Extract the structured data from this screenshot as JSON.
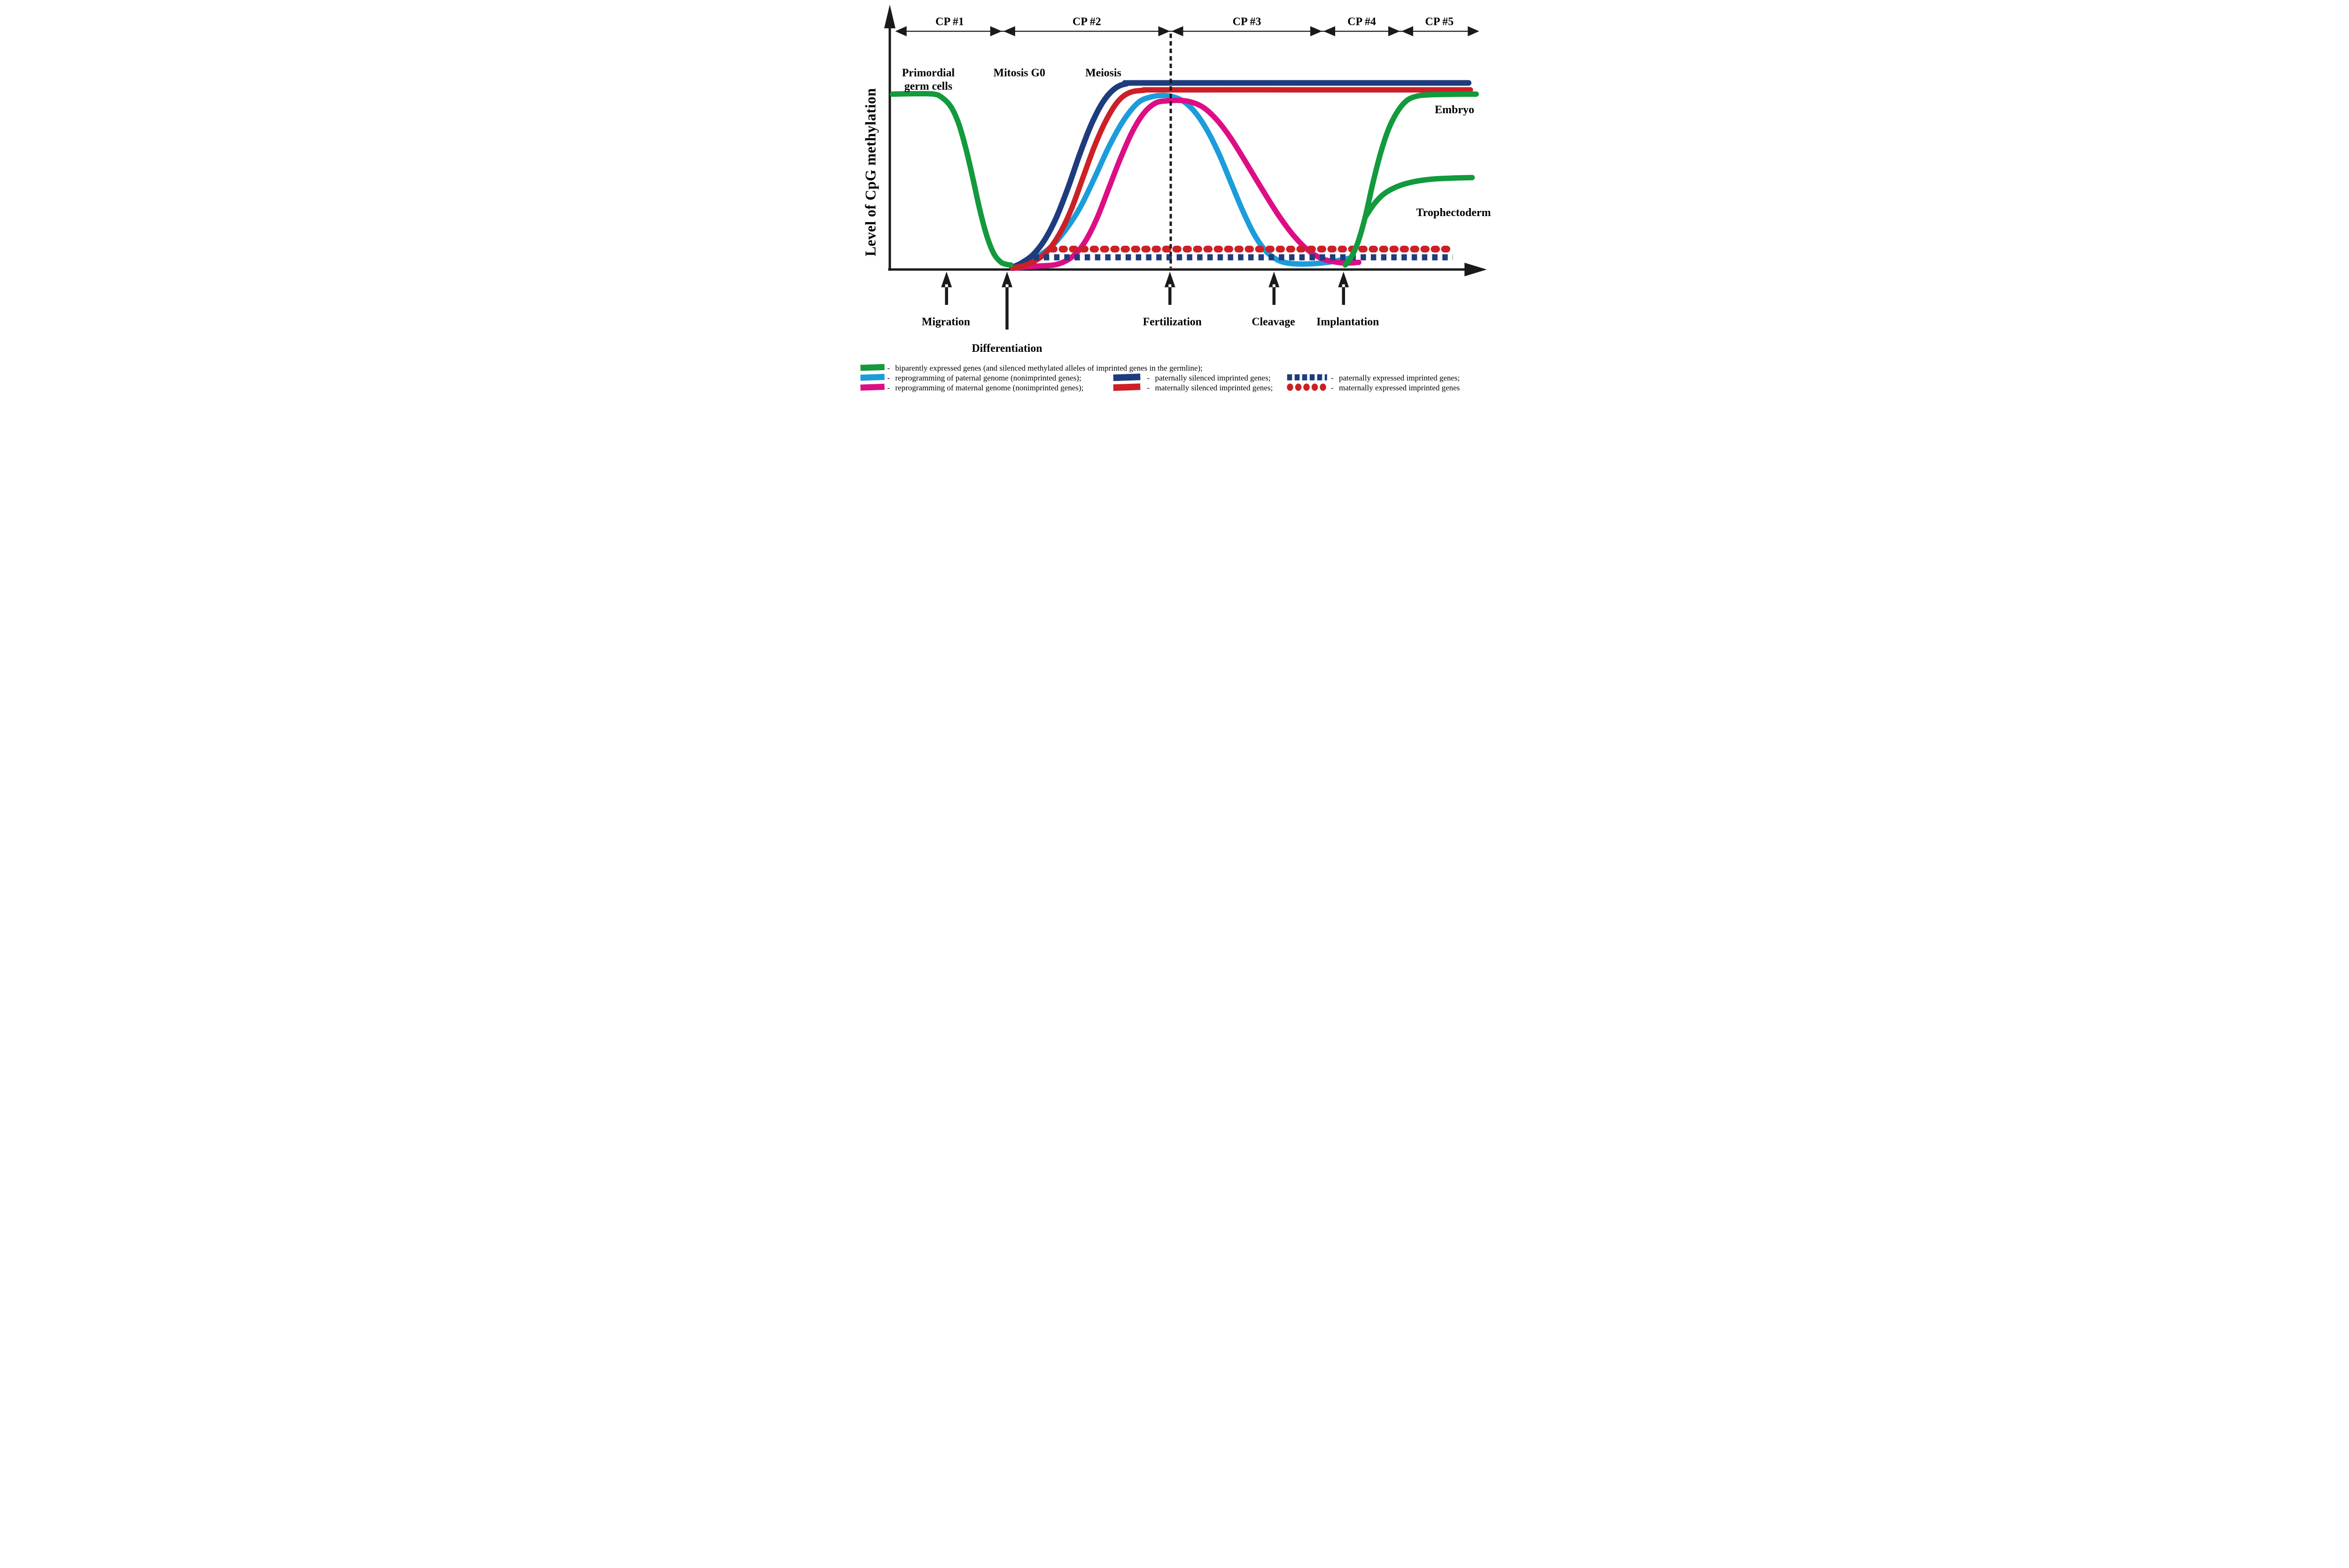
{
  "colors": {
    "black": "#1a1a1a",
    "green": "#129a3c",
    "light_blue": "#1b9ddb",
    "magenta": "#dd0e85",
    "navy": "#1e3c7d",
    "red": "#cc2026"
  },
  "chart_data": {
    "type": "line",
    "title": "",
    "ylabel": "Level of CpG methylation",
    "xlabel": "",
    "x_range": [
      0,
      100
    ],
    "y_range": [
      0,
      100
    ],
    "grid": false,
    "axis_ticks": "none",
    "legend_position": "bottom",
    "checkpoints": [
      {
        "label": "CP #1",
        "t_start": 1.2,
        "t_end": 19.3
      },
      {
        "label": "CP #2",
        "t_start": 19.3,
        "t_end": 48.05
      },
      {
        "label": "CP #3",
        "t_start": 48.05,
        "t_end": 74.05
      },
      {
        "label": "CP #4",
        "t_start": 74.05,
        "t_end": 87.4
      },
      {
        "label": "CP #5",
        "t_start": 87.4,
        "t_end": 100.6
      }
    ],
    "annotations": {
      "primordial_line1": "Primordial",
      "primordial_line2": "germ cells",
      "mitosis": "Mitosis G0",
      "meiosis": "Meiosis",
      "embryo": "Embryo",
      "trophectoderm": "Trophectoderm"
    },
    "events": [
      {
        "label": "Migration",
        "t": 9.7,
        "arrow": "short"
      },
      {
        "label": "Differentiation",
        "t": 20.05,
        "arrow": "long"
      },
      {
        "label": "Fertilization",
        "t": 47.9,
        "arrow": "short",
        "dashed_guide": true
      },
      {
        "label": "Cleavage",
        "t": 65.7,
        "arrow": "short"
      },
      {
        "label": "Implantation",
        "t": 77.6,
        "arrow": "short"
      }
    ],
    "series": [
      {
        "id": "biparental",
        "name": "biparently expressed genes (and silenced methylated alleles of imprinted genes in the germline);",
        "color": "#129a3c",
        "style": "solid",
        "width": 46,
        "segments": [
          [
            [
              0.45,
              94
            ],
            [
              4,
              94.2
            ],
            [
              7.5,
              94
            ],
            [
              9,
              92
            ],
            [
              10.5,
              87
            ],
            [
              11.8,
              78
            ],
            [
              13,
              65
            ],
            [
              14.2,
              49
            ],
            [
              15.4,
              32
            ],
            [
              16.6,
              18
            ],
            [
              17.8,
              8.5
            ],
            [
              19,
              4
            ],
            [
              20,
              2.8
            ],
            [
              20.7,
              2.5
            ]
          ],
          [
            [
              77.9,
              2.5
            ],
            [
              78.8,
              6
            ],
            [
              80,
              14
            ],
            [
              81.3,
              28
            ],
            [
              82.6,
              46
            ],
            [
              84,
              63
            ],
            [
              85.4,
              76
            ],
            [
              86.9,
              85
            ],
            [
              88.4,
              90.5
            ],
            [
              90,
              92.8
            ],
            [
              92,
              93.6
            ],
            [
              96,
              93.9
            ],
            [
              100.3,
              94
            ]
          ],
          [
            [
              81.3,
              28
            ],
            [
              82.8,
              35
            ],
            [
              84.5,
              40.5
            ],
            [
              86.8,
              44.5
            ],
            [
              89.5,
              47
            ],
            [
              92.5,
              48.4
            ],
            [
              96,
              49
            ],
            [
              99.6,
              49.3
            ]
          ]
        ]
      },
      {
        "id": "paternal-reprogramming",
        "name": "reprogramming of paternal genome (nonimprinted genes);",
        "color": "#1b9ddb",
        "style": "solid",
        "width": 46,
        "segments": [
          [
            [
              21,
              1.1
            ],
            [
              23,
              3
            ],
            [
              25,
              6.5
            ],
            [
              27.5,
              12
            ],
            [
              30,
              21
            ],
            [
              32.5,
              33
            ],
            [
              35,
              49
            ],
            [
              37.5,
              66
            ],
            [
              40,
              80
            ],
            [
              42.5,
              89.5
            ],
            [
              44.8,
              92.6
            ],
            [
              46.8,
              93.3
            ],
            [
              48.4,
              92.6
            ],
            [
              50.3,
              90
            ],
            [
              52.3,
              84
            ],
            [
              54.3,
              74.5
            ],
            [
              56.3,
              62
            ],
            [
              58.3,
              47
            ],
            [
              60.3,
              32
            ],
            [
              62.3,
              19
            ],
            [
              64.3,
              10
            ],
            [
              66.3,
              5.2
            ],
            [
              68.3,
              3.4
            ],
            [
              70.5,
              3
            ],
            [
              73,
              3.3
            ],
            [
              75.5,
              4.2
            ],
            [
              77.5,
              5.4
            ],
            [
              78.9,
              6.3
            ]
          ]
        ]
      },
      {
        "id": "maternal-reprogramming",
        "name": "reprogramming of maternal genome (nonimprinted genes);",
        "color": "#dd0e85",
        "style": "solid",
        "width": 46,
        "segments": [
          [
            [
              21,
              0.7
            ],
            [
              22.5,
              1.2
            ],
            [
              24.5,
              1.8
            ],
            [
              26.5,
              2.1
            ],
            [
              28.3,
              2.6
            ],
            [
              30,
              4.5
            ],
            [
              31.8,
              8.5
            ],
            [
              33.6,
              16
            ],
            [
              35.5,
              28
            ],
            [
              37.5,
              44
            ],
            [
              39.5,
              60
            ],
            [
              41.5,
              74
            ],
            [
              43.5,
              84
            ],
            [
              45.5,
              89.3
            ],
            [
              47.5,
              90.4
            ],
            [
              49.8,
              90.6
            ],
            [
              51.8,
              89.5
            ],
            [
              53.8,
              86.5
            ],
            [
              56,
              80
            ],
            [
              58.3,
              70.5
            ],
            [
              60.8,
              58
            ],
            [
              63.5,
              44
            ],
            [
              66.3,
              30
            ],
            [
              69,
              18.5
            ],
            [
              71.5,
              10.5
            ],
            [
              73.8,
              6
            ],
            [
              76,
              4.2
            ],
            [
              78,
              3.5
            ],
            [
              80.2,
              3.9
            ]
          ]
        ]
      },
      {
        "id": "paternally-silenced",
        "name": "paternally silenced imprinted genes;",
        "color": "#1e3c7d",
        "style": "solid",
        "width": 48,
        "segments": [
          [
            [
              20.9,
              1.2
            ],
            [
              22.5,
              3.5
            ],
            [
              24.5,
              8
            ],
            [
              26.5,
              16
            ],
            [
              28.5,
              28
            ],
            [
              30.5,
              44
            ],
            [
              32.5,
              62
            ],
            [
              34.5,
              78
            ],
            [
              36.5,
              90
            ],
            [
              38.5,
              97
            ],
            [
              40.5,
              99.6
            ],
            [
              43,
              100
            ],
            [
              70,
              100
            ],
            [
              99,
              100
            ]
          ]
        ]
      },
      {
        "id": "maternally-silenced",
        "name": "maternally silenced imprinted genes;",
        "color": "#cc2026",
        "style": "solid",
        "width": 46,
        "segments": [
          [
            [
              21,
              0.9
            ],
            [
              23,
              2.2
            ],
            [
              25,
              5
            ],
            [
              27,
              10
            ],
            [
              29,
              19
            ],
            [
              31,
              32
            ],
            [
              33,
              49
            ],
            [
              35,
              66
            ],
            [
              37,
              80
            ],
            [
              39,
              90
            ],
            [
              41,
              94.8
            ],
            [
              43.5,
              96.1
            ],
            [
              46,
              96.3
            ],
            [
              70,
              96.3
            ],
            [
              99.3,
              96.3
            ]
          ]
        ]
      },
      {
        "id": "paternally-expressed",
        "name": "paternally expressed imprinted genes;",
        "color": "#1e3c7d",
        "style": "dotted",
        "dot_shape": "square",
        "y": 6.6,
        "x_start": 24.6,
        "x_end": 96.3,
        "width": 52,
        "dash": [
          46,
          41
        ],
        "cap": "butt"
      },
      {
        "id": "maternally-expressed",
        "name": "maternally expressed imprinted genes",
        "color": "#cc2026",
        "style": "dotted",
        "dot_shape": "round",
        "y": 11.0,
        "x_start": 27.7,
        "x_end": 96.5,
        "width": 58,
        "dash": [
          20,
          68
        ],
        "cap": "round"
      }
    ]
  },
  "legend": {
    "dash": "-"
  }
}
